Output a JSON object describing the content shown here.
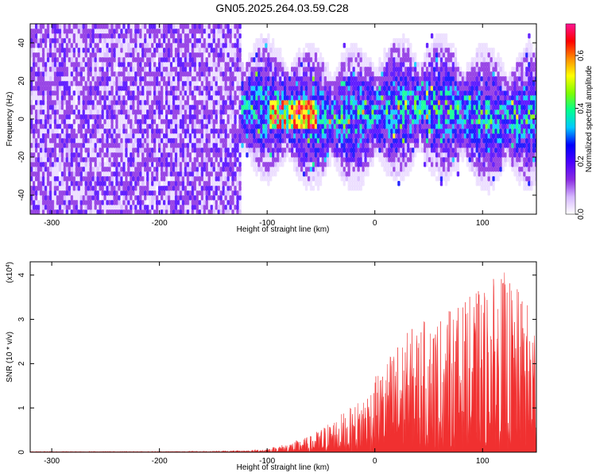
{
  "title": "GN05.2025.264.03.59.C28",
  "chart_data": [
    {
      "type": "heatmap",
      "xlabel": "Height of straight line (km)",
      "ylabel": "Frequency (Hz)",
      "xlim": [
        -320,
        150
      ],
      "ylim": [
        -50,
        50
      ],
      "xticks": [
        -300,
        -200,
        -100,
        0,
        100
      ],
      "yticks": [
        -40,
        -20,
        0,
        20,
        40
      ],
      "colorbar": {
        "label": "Normalized spectral amplitude",
        "range": [
          0.0,
          0.72
        ],
        "ticks": [
          "0.0",
          "0.2",
          "0.4",
          "0.6"
        ],
        "colors": [
          "#ffffff",
          "#d6b8ff",
          "#8a2be2",
          "#4b00ff",
          "#0000ff",
          "#00c8ff",
          "#00ff90",
          "#7fff00",
          "#ffff00",
          "#ff8c00",
          "#ff0000",
          "#ff1493"
        ]
      },
      "regions": [
        {
          "x": [
            -320,
            -125
          ],
          "y": [
            -50,
            50
          ],
          "level": 0.15,
          "description_color": "#7b2be8"
        },
        {
          "x": [
            -125,
            150
          ],
          "y": [
            -20,
            25
          ],
          "level": 0.2
        },
        {
          "x": [
            -100,
            -55
          ],
          "y": [
            -5,
            8
          ],
          "level": 0.5
        }
      ],
      "peak_level": 0.68,
      "grid": false
    },
    {
      "type": "area",
      "xlabel": "Height of straight line (km)",
      "ylabel": "SNR (10 * v/v)",
      "yscale_label": "(x10",
      "yscale_exp": "4",
      "yscale_close": ")",
      "xlim": [
        -320,
        150
      ],
      "ylim": [
        0,
        4.3
      ],
      "xticks": [
        -300,
        -200,
        -100,
        0,
        100
      ],
      "yticks": [
        0,
        1,
        2,
        3,
        4
      ],
      "color": "#f03030",
      "series": [
        {
          "x": [
            -320,
            -250,
            -200,
            -150,
            -120,
            -100,
            -80,
            -60,
            -40,
            -20,
            0,
            20,
            40,
            60,
            80,
            100,
            120,
            140,
            150
          ],
          "values": [
            0.02,
            0.02,
            0.02,
            0.03,
            0.04,
            0.08,
            0.2,
            0.35,
            0.7,
            1.0,
            1.6,
            2.4,
            2.8,
            3.0,
            3.2,
            3.6,
            3.9,
            3.3,
            3.0
          ]
        }
      ],
      "grid": false
    }
  ]
}
